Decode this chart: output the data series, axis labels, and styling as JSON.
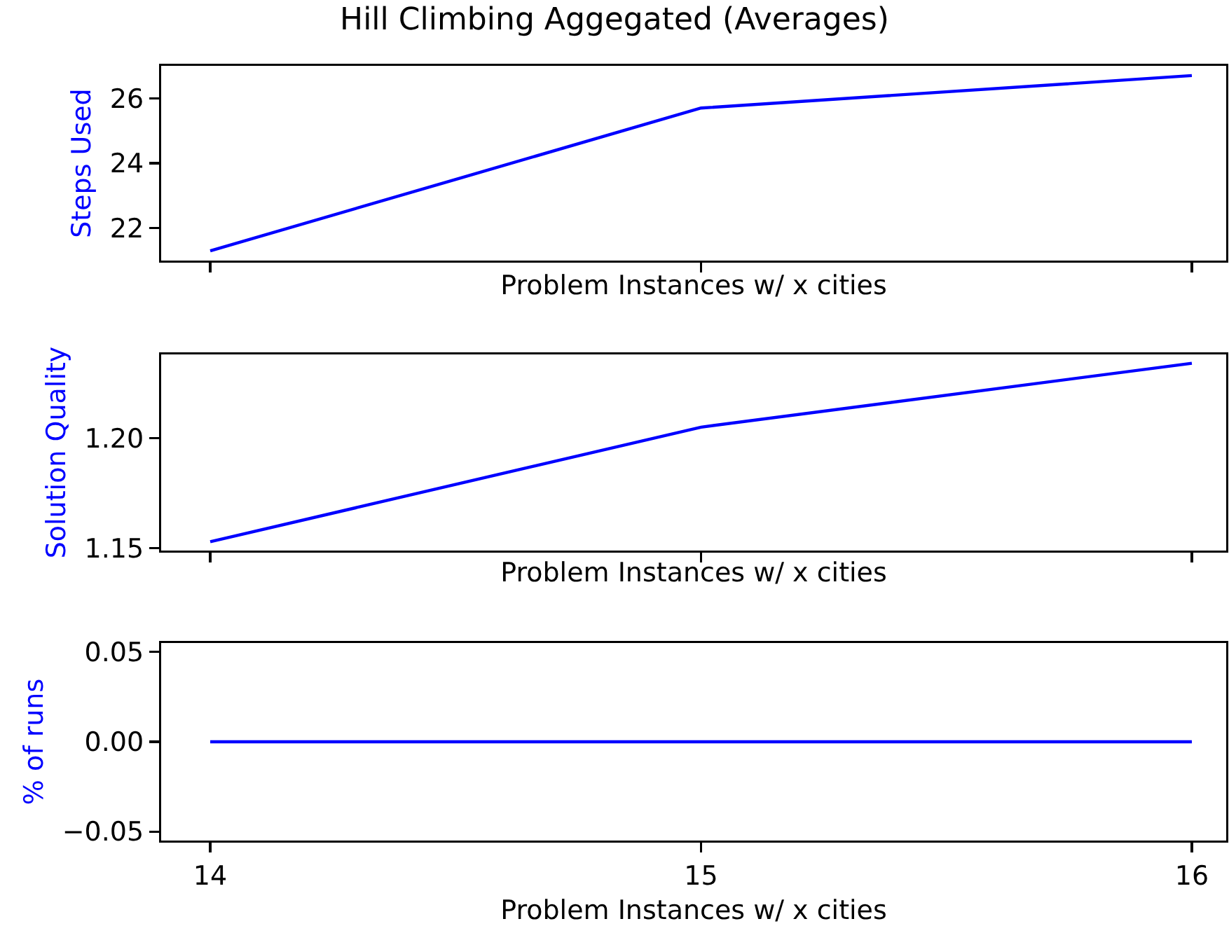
{
  "chart_data": [
    {
      "type": "line",
      "title": "Hill Climbing Aggegated (Averages)",
      "xlabel": "Problem Instances w/ x cities",
      "ylabel": "Steps Used",
      "x": [
        14,
        15,
        16
      ],
      "series": [
        {
          "color": "#0000ff",
          "values": [
            21.3,
            25.7,
            26.7
          ]
        }
      ],
      "xlim": [
        13.9,
        16.07
      ],
      "xticks": [
        14,
        15,
        16
      ],
      "ylim": [
        21.0,
        27.0
      ],
      "yticks": [
        22,
        24,
        26
      ],
      "tick_labels": "y",
      "marker": "none",
      "line_style": "solid"
    },
    {
      "type": "line",
      "xlabel": "Problem Instances w/ x cities",
      "ylabel": "Solution Quality",
      "x": [
        14,
        15,
        16
      ],
      "series": [
        {
          "color": "#0000ff",
          "values": [
            1.153,
            1.205,
            1.234
          ]
        }
      ],
      "xlim": [
        13.9,
        16.07
      ],
      "xticks": [
        14,
        15,
        16
      ],
      "ylim": [
        1.149,
        1.238
      ],
      "yticks": [
        1.15,
        {
          "value": 1.2,
          "label": "1.20"
        }
      ],
      "tick_labels": "y",
      "marker": "none",
      "line_style": "solid"
    },
    {
      "type": "line",
      "xlabel": "Problem Instances w/ x cities",
      "ylabel": "% of runs",
      "x": [
        14,
        15,
        16
      ],
      "series": [
        {
          "color": "#0000ff",
          "values": [
            0,
            0,
            0
          ]
        }
      ],
      "xlim": [
        13.9,
        16.07
      ],
      "xticks": [
        14,
        15,
        16
      ],
      "ylim": [
        -0.055,
        0.055
      ],
      "yticks": [
        {
          "value": -0.05,
          "label": "−0.05"
        },
        {
          "value": 0,
          "label": "0.00"
        },
        {
          "value": 0.05,
          "label": "0.05"
        }
      ],
      "marker": "none",
      "line_style": "solid"
    }
  ]
}
